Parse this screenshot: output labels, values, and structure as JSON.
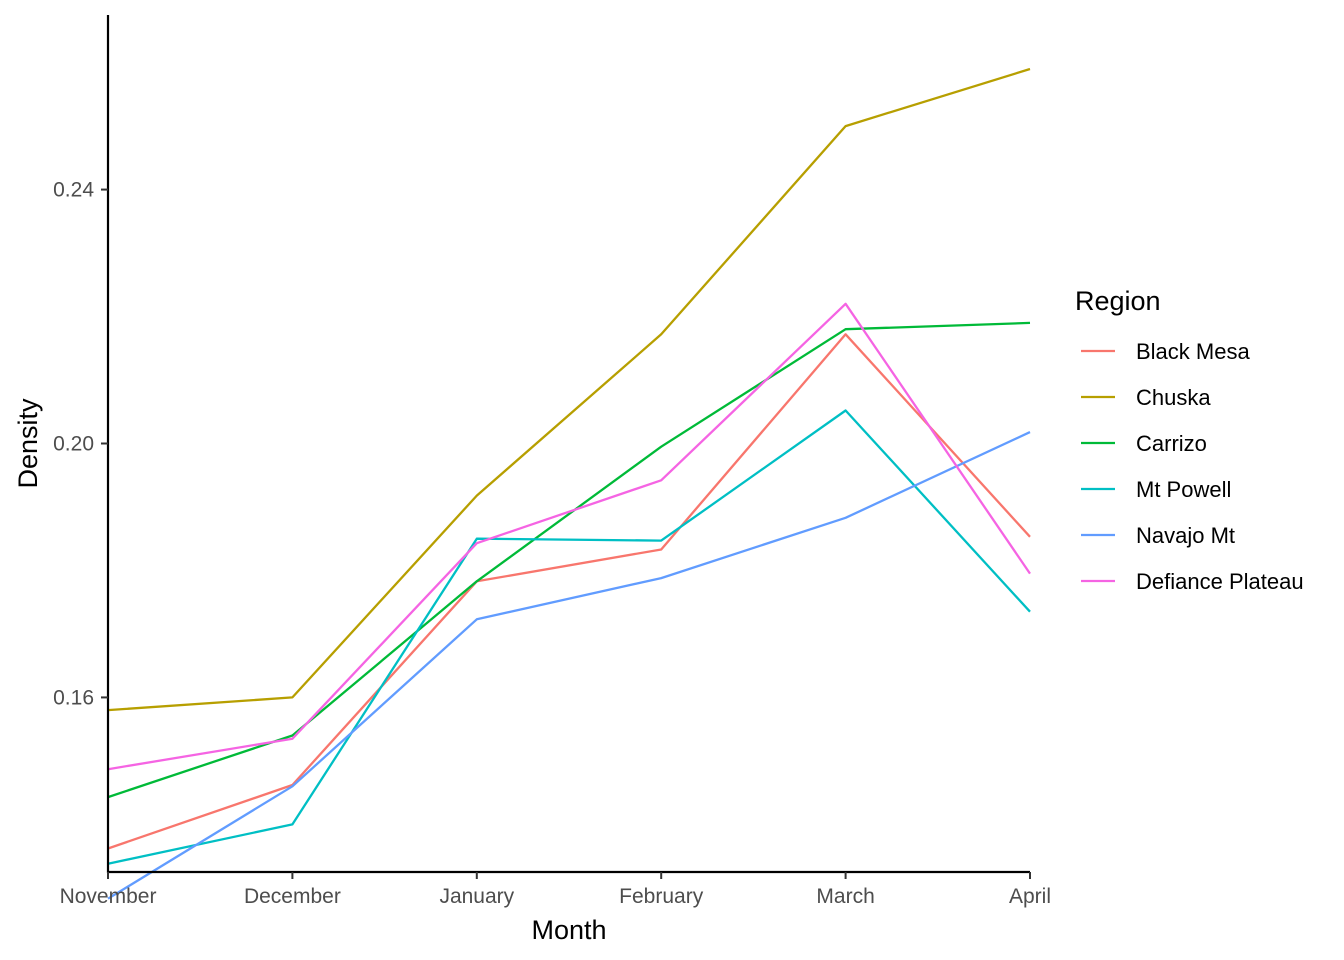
{
  "chart_data": {
    "type": "line",
    "title": "",
    "xlabel": "Month",
    "ylabel": "Density",
    "categories": [
      "November",
      "December",
      "January",
      "February",
      "March",
      "April"
    ],
    "y_ticks": [
      0.16,
      0.2,
      0.24
    ],
    "y_tick_labels": [
      "0.16",
      "0.20",
      "0.24"
    ],
    "ylim": [
      0.1325,
      0.2675
    ],
    "grid": false,
    "legend": {
      "title": "Region",
      "position": "right"
    },
    "series": [
      {
        "name": "Black Mesa",
        "color": "#F8766D",
        "values": [
          0.1362,
          0.1462,
          0.1783,
          0.1833,
          0.2172,
          0.1853
        ]
      },
      {
        "name": "Chuska",
        "color": "#B79F00",
        "values": [
          0.158,
          0.16,
          0.1918,
          0.2172,
          0.25,
          0.259
        ]
      },
      {
        "name": "Carrizo",
        "color": "#00BA38",
        "values": [
          0.1443,
          0.154,
          0.1783,
          0.1995,
          0.218,
          0.219
        ]
      },
      {
        "name": "Mt Powell",
        "color": "#00BFC4",
        "values": [
          0.1338,
          0.14,
          0.185,
          0.1847,
          0.2052,
          0.1735
        ]
      },
      {
        "name": "Navajo Mt",
        "color": "#619CFF",
        "values": [
          0.1283,
          0.146,
          0.1723,
          0.1788,
          0.1883,
          0.2018
        ]
      },
      {
        "name": "Defiance Plateau",
        "color": "#F564E3",
        "values": [
          0.1487,
          0.1535,
          0.1843,
          0.1942,
          0.222,
          0.1795
        ]
      }
    ]
  }
}
